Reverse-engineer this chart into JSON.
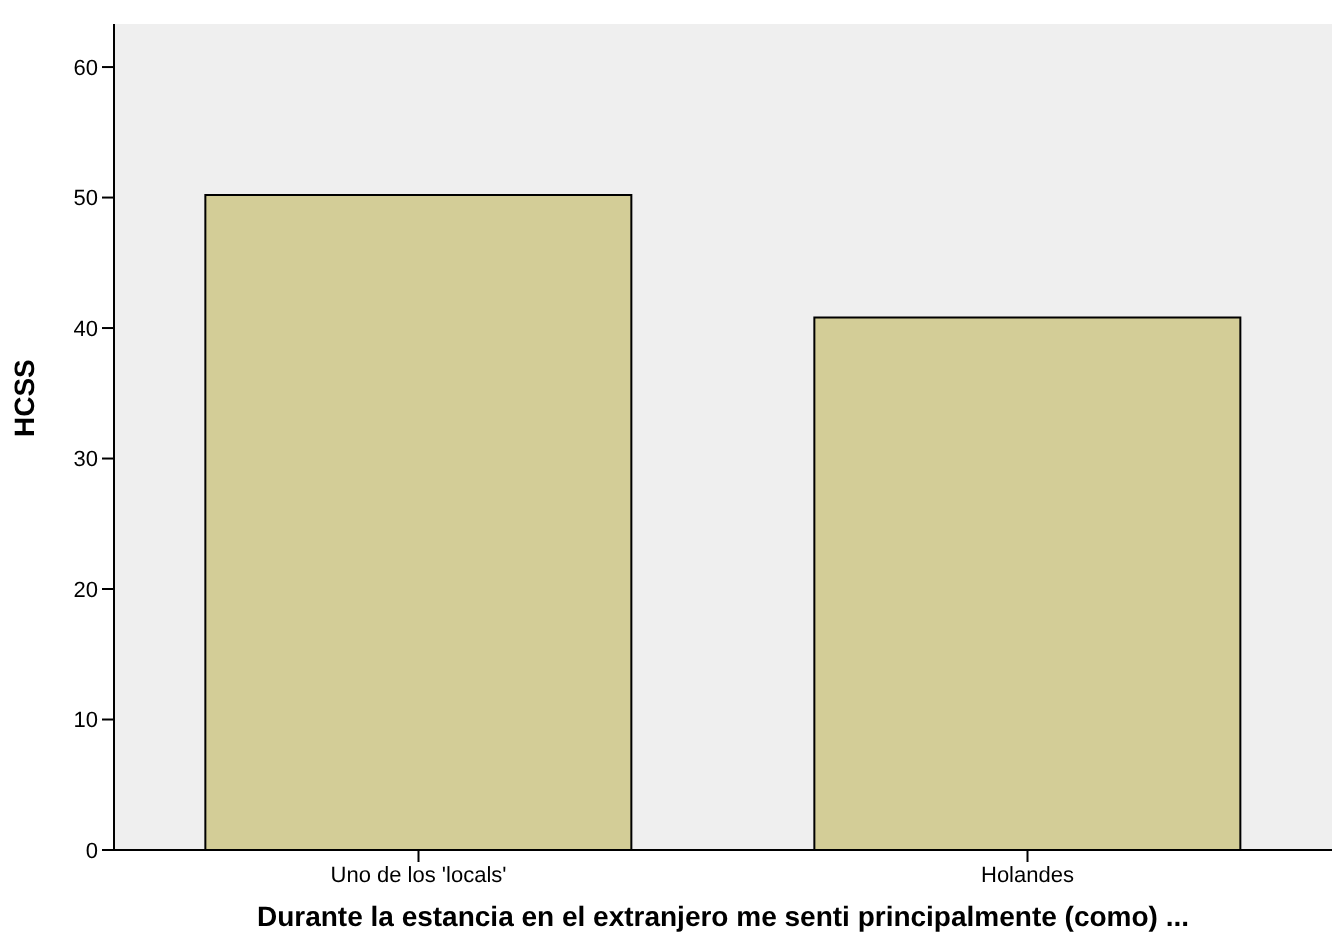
{
  "chart_data": {
    "type": "bar",
    "xlabel": "Durante la estancia en el extranjero me senti principalmente (como) ...",
    "ylabel": "HCSS",
    "categories": [
      "Uno de los 'locals'",
      "Holandes"
    ],
    "values": [
      50.2,
      40.8
    ],
    "color": "#d3cd97",
    "ylim": [
      0,
      63.3
    ],
    "yticks": [
      0,
      10,
      20,
      30,
      40,
      50,
      60
    ],
    "grid": false
  }
}
